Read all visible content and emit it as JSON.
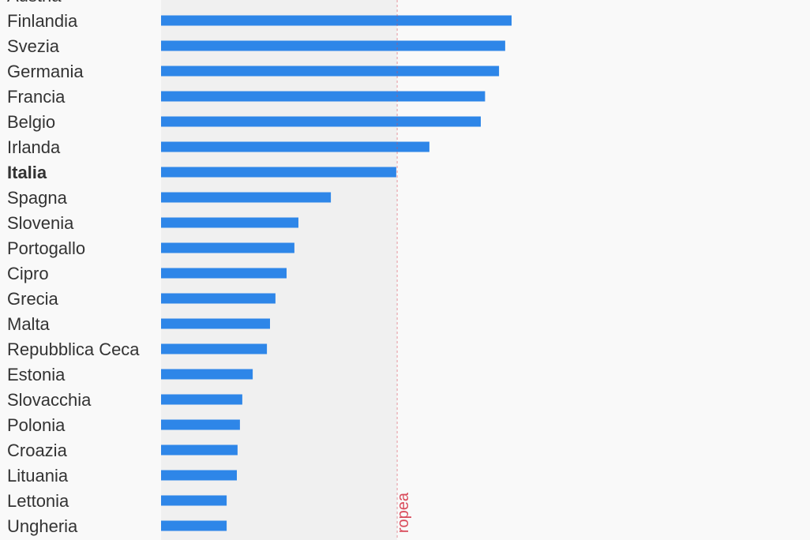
{
  "colors": {
    "background": "#f9f9f9",
    "shade": "#f0f0f0",
    "bar": "#2e86e8",
    "reference": "#d94a5a"
  },
  "chart_data": {
    "type": "bar",
    "orientation": "horizontal",
    "highlight": "Italia",
    "categories": [
      "Austria",
      "Finlandia",
      "Svezia",
      "Germania",
      "Francia",
      "Belgio",
      "Irlanda",
      "Italia",
      "Spagna",
      "Slovenia",
      "Portogallo",
      "Cipro",
      "Grecia",
      "Malta",
      "Repubblica Ceca",
      "Estonia",
      "Slovacchia",
      "Polonia",
      "Croazia",
      "Lituania",
      "Lettonia",
      "Ungheria"
    ],
    "values": [
      null,
      148,
      145.3,
      142.7,
      136.8,
      135,
      113.3,
      99.3,
      71.7,
      58,
      56.3,
      53,
      48.3,
      46,
      44.7,
      38.7,
      34.3,
      33.3,
      32.3,
      32,
      27.7,
      27.7
    ],
    "xlim": [
      0,
      274
    ],
    "reference_line": {
      "value": 99.7,
      "label": "ropea"
    },
    "grid": false,
    "legend": "none"
  }
}
